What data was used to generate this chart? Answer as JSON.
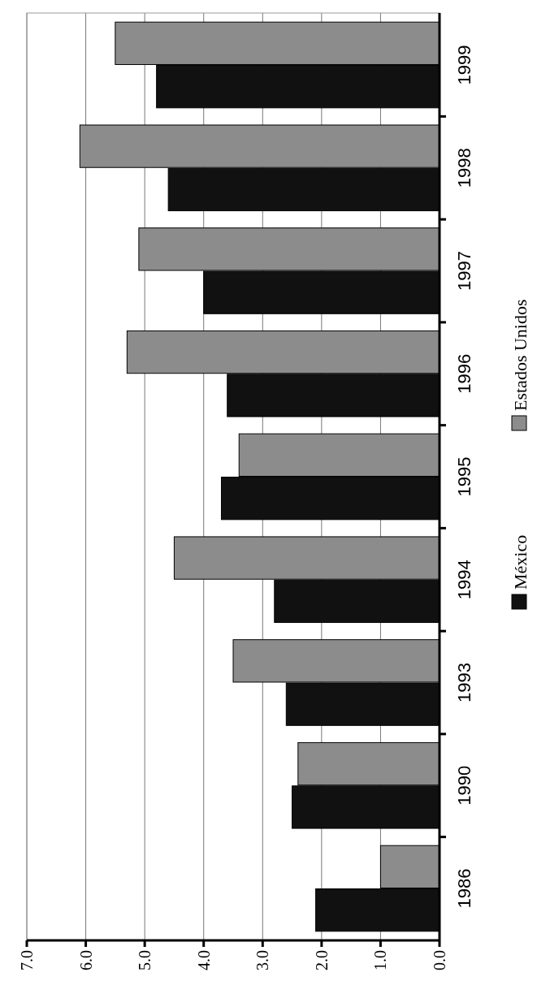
{
  "chart_data": {
    "type": "bar",
    "orientation": "horizontal",
    "categories": [
      "1999",
      "1998",
      "1997",
      "1996",
      "1995",
      "1994",
      "1993",
      "1990",
      "1986"
    ],
    "series": [
      {
        "name": "México",
        "color": "#111111",
        "values": [
          4.8,
          4.6,
          4.0,
          3.6,
          3.7,
          2.8,
          2.6,
          2.5,
          2.1
        ]
      },
      {
        "name": "Estados Unidos",
        "color": "#8c8c8c",
        "values": [
          5.5,
          6.1,
          5.1,
          5.3,
          3.4,
          4.5,
          3.5,
          2.4,
          1.0
        ]
      }
    ],
    "xlim": [
      7,
      0
    ],
    "xticks": [
      {
        "value": 0,
        "label": "0.0"
      },
      {
        "value": 1,
        "label": "1.0"
      },
      {
        "value": 2,
        "label": "2.0"
      },
      {
        "value": 3,
        "label": "3.0"
      },
      {
        "value": 4,
        "label": "4.0"
      },
      {
        "value": 5,
        "label": "5.0"
      },
      {
        "value": 6,
        "label": "6.0"
      },
      {
        "value": 7,
        "label": "7.0"
      }
    ],
    "grid": "x",
    "legend": "right"
  }
}
